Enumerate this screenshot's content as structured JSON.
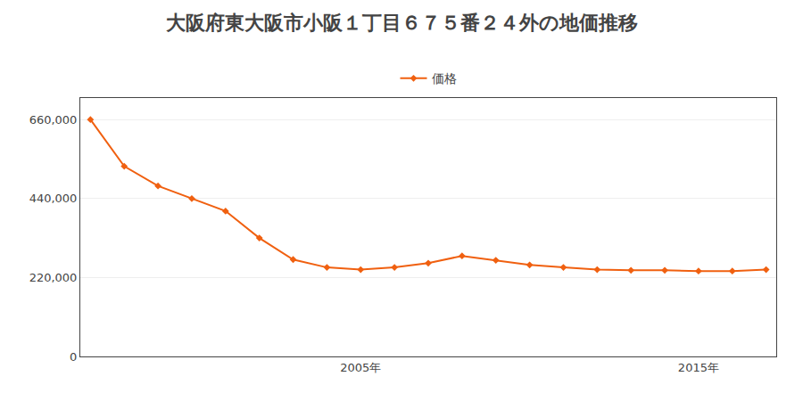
{
  "chart_data": {
    "type": "line",
    "title": "大阪府東大阪市小阪１丁目６７５番２４外の地価推移",
    "x": [
      1997,
      1998,
      1999,
      2000,
      2001,
      2002,
      2003,
      2004,
      2005,
      2006,
      2007,
      2008,
      2009,
      2010,
      2011,
      2012,
      2013,
      2014,
      2015,
      2016,
      2017
    ],
    "series": [
      {
        "name": "価格",
        "color": "#f06010",
        "marker": "diamond",
        "values": [
          660000,
          530000,
          475000,
          440000,
          405000,
          330000,
          270000,
          248000,
          242000,
          248000,
          260000,
          280000,
          268000,
          255000,
          248000,
          242000,
          240000,
          240000,
          238000,
          238000,
          242000
        ]
      }
    ],
    "xlim": [
      1996.7,
      2017.3
    ],
    "xticks": [
      {
        "value": 2005,
        "label": "2005年"
      },
      {
        "value": 2015,
        "label": "2015年"
      }
    ],
    "ylim": [
      0,
      720000
    ],
    "yticks": [
      0,
      {
        "value": 220000,
        "label": "220,000"
      },
      {
        "value": 440000,
        "label": "440,000"
      },
      {
        "value": 660000,
        "label": "660,000"
      }
    ],
    "grid": "y",
    "legend": "top"
  }
}
